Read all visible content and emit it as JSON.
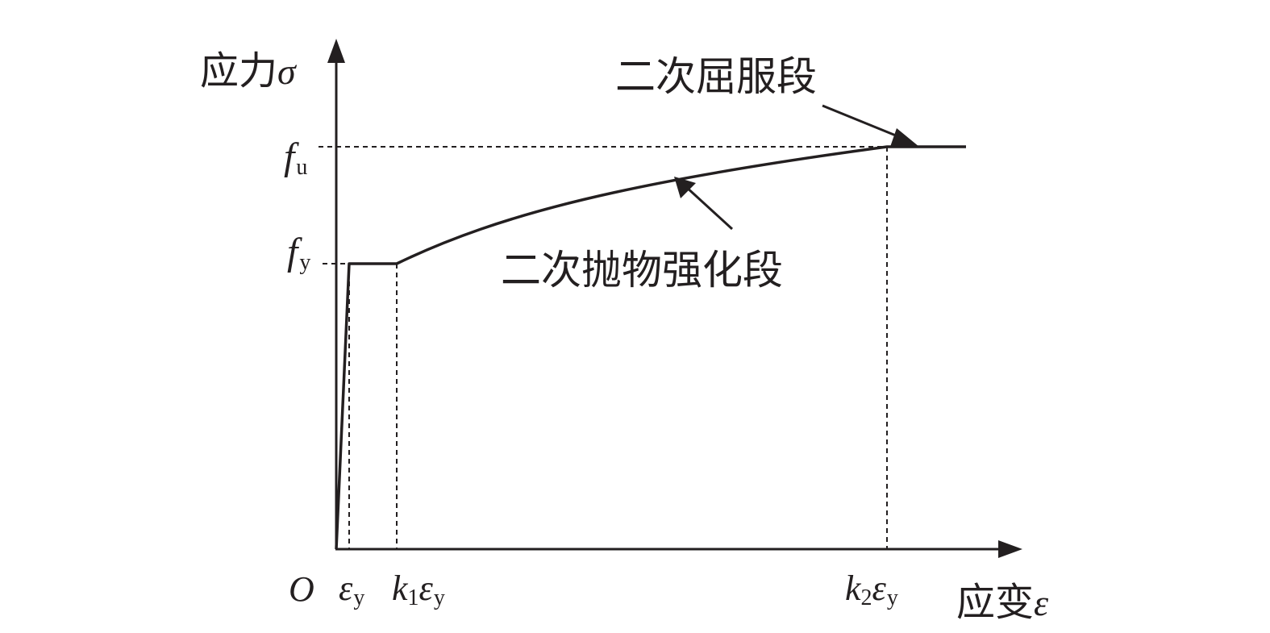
{
  "axes": {
    "y_label": "应力",
    "y_symbol": "σ",
    "x_label": "应变",
    "x_symbol": "ε",
    "origin": "O"
  },
  "levels": {
    "fu": {
      "main": "f",
      "sub": "u"
    },
    "fy": {
      "main": "f",
      "sub": "y"
    }
  },
  "strain_marks": {
    "ey": {
      "coef": "",
      "coef_sub": "",
      "main": "ε",
      "sub": "y"
    },
    "k1ey": {
      "coef": "k",
      "coef_sub": "1",
      "main": "ε",
      "sub": "y"
    },
    "k2ey": {
      "coef": "k",
      "coef_sub": "2",
      "main": "ε",
      "sub": "y"
    }
  },
  "annotations": {
    "secondary_yield": "二次屈服段",
    "parabolic_hardening": "二次抛物强化段"
  },
  "colors": {
    "line": "#231f20",
    "background": "#ffffff"
  }
}
